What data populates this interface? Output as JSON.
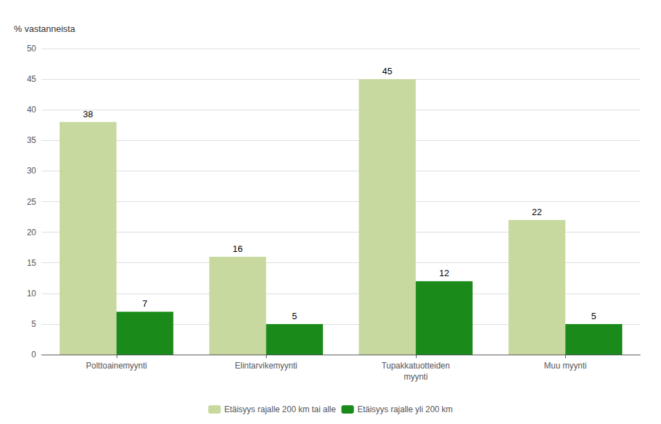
{
  "chart_data": {
    "type": "bar",
    "ylabel": "% vastanneista",
    "categories": [
      "Polttoainemyynti",
      "Elintarvikemyynti",
      "Tupakkatuotteiden\nmyynti",
      "Muu myynti"
    ],
    "series": [
      {
        "name": "Etäisyys rajalle 200 km tai alle",
        "color": "#c8d9a0",
        "values": [
          38,
          16,
          45,
          22
        ]
      },
      {
        "name": "Etäisyys rajalle yli 200 km",
        "color": "#1a8a1a",
        "values": [
          7,
          5,
          12,
          5
        ]
      }
    ],
    "ylim": [
      0,
      50
    ],
    "yticks": [
      0,
      5,
      10,
      15,
      20,
      25,
      30,
      35,
      40,
      45,
      50
    ],
    "grid": true,
    "data_labels": true,
    "legend": "bottom"
  }
}
